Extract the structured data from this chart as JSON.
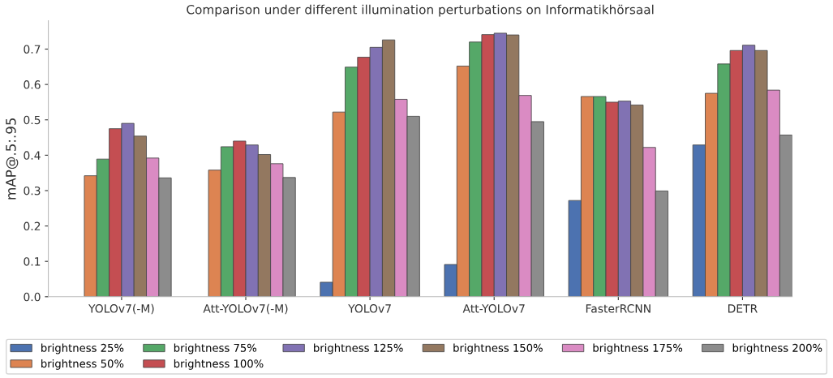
{
  "chart_data": {
    "type": "bar",
    "title": "Comparison under different illumination perturbations on Informatikhörsaal",
    "ylabel": "mAP@.5:.95",
    "categories": [
      "YOLOv7(-M)",
      "Att-YOLOv7(-M)",
      "YOLOv7",
      "Att-YOLOv7",
      "FasterRCNN",
      "DETR"
    ],
    "series": [
      {
        "name": "brightness 25%",
        "color": "#4c72b0",
        "values": [
          null,
          null,
          0.041,
          0.091,
          0.272,
          0.429
        ]
      },
      {
        "name": "brightness 50%",
        "color": "#dd8452",
        "values": [
          0.342,
          0.358,
          0.522,
          0.652,
          0.566,
          0.575
        ]
      },
      {
        "name": "brightness 75%",
        "color": "#55a868",
        "values": [
          0.389,
          0.424,
          0.649,
          0.72,
          0.566,
          0.658
        ]
      },
      {
        "name": "brightness 100%",
        "color": "#c44e52",
        "values": [
          0.475,
          0.44,
          0.677,
          0.741,
          0.55,
          0.696
        ]
      },
      {
        "name": "brightness 125%",
        "color": "#8172b3",
        "values": [
          0.49,
          0.429,
          0.705,
          0.745,
          0.553,
          0.711
        ]
      },
      {
        "name": "brightness 150%",
        "color": "#937860",
        "values": [
          0.454,
          0.402,
          0.726,
          0.74,
          0.542,
          0.696
        ]
      },
      {
        "name": "brightness 175%",
        "color": "#da8bc3",
        "values": [
          0.392,
          0.376,
          0.558,
          0.569,
          0.422,
          0.584
        ]
      },
      {
        "name": "brightness 200%",
        "color": "#8c8c8c",
        "values": [
          0.336,
          0.337,
          0.51,
          0.495,
          0.299,
          0.457
        ]
      }
    ],
    "ylim": [
      0,
      0.78
    ],
    "yticks": [
      {
        "value": 0,
        "label": "0.0"
      },
      0.1,
      0.2,
      0.3,
      0.4,
      0.5,
      0.6,
      0.7
    ],
    "grid": false,
    "legend": "bottom"
  }
}
